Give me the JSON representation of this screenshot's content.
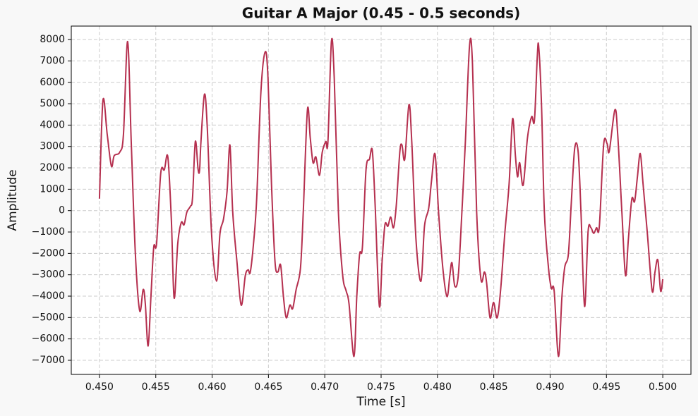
{
  "chart_data": {
    "type": "line",
    "title": "Guitar A Major (0.45 - 0.5 seconds)",
    "x_label": "Time [s]",
    "y_label": "Amplitude",
    "grid": true,
    "xlim": [
      0.4475,
      0.5025
    ],
    "ylim": [
      -7660,
      8630
    ],
    "xticks": [
      {
        "value": 0.45,
        "label": "0.450"
      },
      0.455,
      {
        "value": 0.46,
        "label": "0.460"
      },
      0.465,
      {
        "value": 0.47,
        "label": "0.470"
      },
      0.475,
      {
        "value": 0.48,
        "label": "0.480"
      },
      0.485,
      {
        "value": 0.49,
        "label": "0.490"
      },
      0.495,
      {
        "value": 0.5,
        "label": "0.500"
      }
    ],
    "yticks": [
      {
        "value": -7000,
        "label": "−7000"
      },
      {
        "value": -6000,
        "label": "−6000"
      },
      {
        "value": -5000,
        "label": "−5000"
      },
      {
        "value": -4000,
        "label": "−4000"
      },
      {
        "value": -3000,
        "label": "−3000"
      },
      {
        "value": -2000,
        "label": "−2000"
      },
      {
        "value": -1000,
        "label": "−1000"
      },
      0,
      1000,
      2000,
      3000,
      4000,
      5000,
      6000,
      7000,
      8000
    ],
    "x": [
      0.45,
      0.45031,
      0.45069,
      0.45106,
      0.45131,
      0.45181,
      0.45213,
      0.4525,
      0.45282,
      0.45319,
      0.45357,
      0.45388,
      0.45407,
      0.45432,
      0.45457,
      0.45482,
      0.45507,
      0.45544,
      0.45576,
      0.45607,
      0.45638,
      0.45663,
      0.45695,
      0.45726,
      0.45751,
      0.45776,
      0.45807,
      0.45826,
      0.45851,
      0.45876,
      0.45889,
      0.45901,
      0.45932,
      0.45957,
      0.45995,
      0.46039,
      0.4607,
      0.46101,
      0.46133,
      0.46158,
      0.46183,
      0.4622,
      0.46258,
      0.46295,
      0.4632,
      0.46339,
      0.4637,
      0.46396,
      0.46433,
      0.46471,
      0.46496,
      0.46527,
      0.46558,
      0.46583,
      0.46608,
      0.46633,
      0.46658,
      0.4669,
      0.46715,
      0.46746,
      0.46784,
      0.46809,
      0.46846,
      0.46871,
      0.46896,
      0.46921,
      0.46953,
      0.46978,
      0.47009,
      0.47028,
      0.47059,
      0.47084,
      0.47121,
      0.47159,
      0.4719,
      0.47215,
      0.47259,
      0.47284,
      0.47309,
      0.47334,
      0.47366,
      0.47397,
      0.47422,
      0.47447,
      0.47484,
      0.47509,
      0.47534,
      0.4756,
      0.47585,
      0.4761,
      0.47635,
      0.47666,
      0.47685,
      0.4771,
      0.47747,
      0.47772,
      0.4781,
      0.47854,
      0.47885,
      0.47922,
      0.47948,
      0.47979,
      0.4801,
      0.48048,
      0.48085,
      0.4811,
      0.48129,
      0.48154,
      0.48185,
      0.48217,
      0.48248,
      0.48285,
      0.48311,
      0.48348,
      0.48386,
      0.48417,
      0.48436,
      0.48467,
      0.48498,
      0.4853,
      0.48561,
      0.48598,
      0.48636,
      0.48667,
      0.48692,
      0.48711,
      0.4873,
      0.48761,
      0.48799,
      0.48836,
      0.48861,
      0.48886,
      0.48899,
      0.48924,
      0.48949,
      0.48986,
      0.49011,
      0.49036,
      0.49074,
      0.49105,
      0.4913,
      0.49162,
      0.49187,
      0.49218,
      0.49249,
      0.49274,
      0.49306,
      0.49337,
      0.49362,
      0.49387,
      0.49412,
      0.49437,
      0.49475,
      0.49506,
      0.49525,
      0.49575,
      0.496,
      0.49637,
      0.49669,
      0.49694,
      0.49725,
      0.4975,
      0.49775,
      0.498,
      0.49825,
      0.49863,
      0.49906,
      0.49931,
      0.49956,
      0.49981,
      0.5
    ],
    "series": [
      {
        "color": "#b5304f",
        "values": [
          560,
          5150,
          3560,
          2080,
          2570,
          2740,
          3560,
          7910,
          3230,
          -2040,
          -4680,
          -3690,
          -4350,
          -6330,
          -4020,
          -1710,
          -1550,
          1750,
          1910,
          2510,
          -400,
          -4090,
          -1550,
          -560,
          -660,
          -70,
          200,
          590,
          3230,
          1910,
          1910,
          3230,
          5440,
          3890,
          -1060,
          -3300,
          -1060,
          -400,
          920,
          3070,
          -70,
          -2370,
          -4420,
          -3030,
          -2770,
          -2870,
          -1390,
          590,
          5540,
          7420,
          6200,
          1250,
          -2370,
          -2870,
          -2540,
          -4020,
          -5010,
          -4420,
          -4580,
          -3690,
          -2700,
          -70,
          4710,
          3400,
          2240,
          2510,
          1650,
          2740,
          3230,
          3230,
          7910,
          6200,
          -70,
          -3030,
          -3760,
          -4350,
          -6820,
          -4020,
          -2040,
          -1710,
          1910,
          2410,
          2800,
          260,
          -4450,
          -2370,
          -660,
          -730,
          -300,
          -800,
          260,
          2740,
          3070,
          2410,
          4950,
          3230,
          -1390,
          -3300,
          -730,
          100,
          1420,
          2640,
          -70,
          -2700,
          -4020,
          -3030,
          -2440,
          -3530,
          -3030,
          -70,
          3230,
          7720,
          6860,
          -70,
          -3200,
          -2870,
          -3360,
          -5010,
          -4290,
          -5010,
          -3690,
          -1060,
          1250,
          4290,
          2570,
          1580,
          2240,
          1190,
          3400,
          4390,
          4220,
          7190,
          7660,
          4880,
          -70,
          -2700,
          -3630,
          -3760,
          -6820,
          -4020,
          -2640,
          -2040,
          260,
          2900,
          2740,
          -70,
          -4480,
          -990,
          -800,
          -1060,
          -800,
          -730,
          3070,
          3130,
          2770,
          4710,
          3560,
          -70,
          -3030,
          -1390,
          530,
          430,
          1580,
          2670,
          1250,
          -1060,
          -3760,
          -2870,
          -2310,
          -3760,
          -3200
        ]
      }
    ]
  }
}
